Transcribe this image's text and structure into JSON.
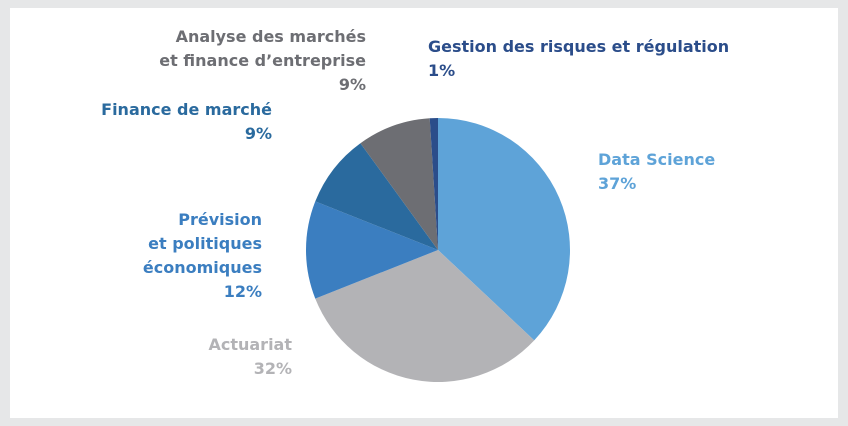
{
  "chart_data": {
    "type": "pie",
    "series": [
      {
        "name": "Data Science",
        "color": "#5ea3d8",
        "values": [
          37
        ],
        "value_labels": [
          "37%"
        ]
      },
      {
        "name": "Actuariat",
        "color": "#b3b3b6",
        "values": [
          32
        ],
        "value_labels": [
          "32%"
        ]
      },
      {
        "name": "Prévision\net politiques\néconomiques",
        "color": "#3b7ec0",
        "values": [
          12
        ],
        "value_labels": [
          "12%"
        ]
      },
      {
        "name": "Finance de marché",
        "color": "#2a6a9e",
        "values": [
          9
        ],
        "value_labels": [
          "9%"
        ]
      },
      {
        "name": "Analyse des marchés\net finance d’entreprise",
        "color": "#6d6e73",
        "values": [
          9
        ],
        "value_labels": [
          "9%"
        ]
      },
      {
        "name": "Gestion des risques et régulation",
        "color": "#2b4d8a",
        "values": [
          1
        ],
        "value_labels": [
          "1%"
        ]
      }
    ]
  }
}
